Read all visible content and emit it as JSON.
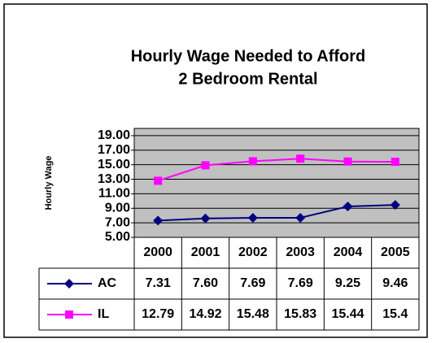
{
  "chart_data": {
    "type": "line",
    "title": [
      "Hourly Wage Needed to Afford",
      "2 Bedroom Rental"
    ],
    "y_label": "Hourly Wage",
    "categories": [
      "2000",
      "2001",
      "2002",
      "2003",
      "2004",
      "2005"
    ],
    "series": [
      {
        "name": "AC",
        "color": "#000080",
        "marker": "diamond",
        "values": [
          7.31,
          7.6,
          7.69,
          7.69,
          9.25,
          9.46
        ],
        "value_labels": [
          "7.31",
          "7.60",
          "7.69",
          "7.69",
          "9.25",
          "9.46"
        ]
      },
      {
        "name": "IL",
        "color": "#ff00ff",
        "marker": "square",
        "values": [
          12.79,
          14.92,
          15.48,
          15.83,
          15.44,
          15.4
        ],
        "value_labels": [
          "12.79",
          "14.92",
          "15.48",
          "15.83",
          "15.44",
          "15.4"
        ]
      }
    ],
    "ylim": [
      5,
      20
    ],
    "yticks": [
      {
        "value": 5,
        "label": "5.00"
      },
      {
        "value": 7,
        "label": "7.00"
      },
      {
        "value": 9,
        "label": "9.00"
      },
      {
        "value": 11,
        "label": "11.00"
      },
      {
        "value": 13,
        "label": "13.00"
      },
      {
        "value": 15,
        "label": "15.00"
      },
      {
        "value": 17,
        "label": "17.00"
      },
      {
        "value": 19,
        "label": "19.00"
      }
    ],
    "grid": true,
    "plot_background": "#c0c0c0"
  }
}
